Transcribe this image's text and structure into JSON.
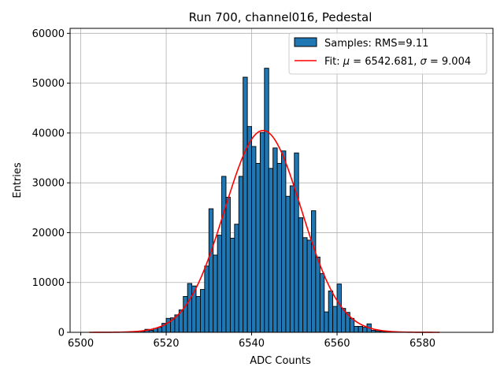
{
  "chart_data": {
    "type": "bar",
    "title": "Run 700, channel016, Pedestal",
    "xlabel": "ADC Counts",
    "ylabel": "Entries",
    "xlim": [
      6497.5,
      6596.5
    ],
    "ylim": [
      0,
      61000
    ],
    "xticks": [
      6500,
      6520,
      6540,
      6560,
      6580
    ],
    "yticks": [
      0,
      10000,
      20000,
      30000,
      40000,
      50000,
      60000
    ],
    "grid": true,
    "legend_placement": "top-right",
    "colors": {
      "bars": "#1f77b4",
      "bar_edge": "#000000",
      "fit": "#ff0000",
      "grid": "#b0b0b0"
    },
    "bin_width": 1,
    "histogram": {
      "name": "Samples: RMS=9.11",
      "x": [
        6514,
        6515,
        6516,
        6517,
        6518,
        6519,
        6520,
        6521,
        6522,
        6523,
        6524,
        6525,
        6526,
        6527,
        6528,
        6529,
        6530,
        6531,
        6532,
        6533,
        6534,
        6535,
        6536,
        6537,
        6538,
        6539,
        6540,
        6541,
        6542,
        6543,
        6544,
        6545,
        6546,
        6547,
        6548,
        6549,
        6550,
        6551,
        6552,
        6553,
        6554,
        6555,
        6556,
        6557,
        6558,
        6559,
        6560,
        6561,
        6562,
        6563,
        6564,
        6565,
        6566,
        6567,
        6568,
        6569,
        6570,
        6571
      ],
      "values": [
        200,
        600,
        400,
        800,
        1000,
        1800,
        2800,
        2900,
        3500,
        4500,
        7200,
        9800,
        9300,
        7200,
        8600,
        13300,
        24800,
        15500,
        19500,
        31300,
        27100,
        18900,
        21700,
        31300,
        51200,
        41300,
        37300,
        33900,
        40100,
        53000,
        32900,
        37000,
        33900,
        36400,
        27300,
        29400,
        36000,
        23000,
        19000,
        18500,
        24400,
        15100,
        11800,
        4100,
        8300,
        5200,
        9700,
        4800,
        4000,
        2800,
        1200,
        1200,
        1000,
        1700,
        400,
        300,
        200,
        100
      ]
    },
    "fit": {
      "name_prefix": "Fit: ",
      "name_mu": "μ",
      "name_mu_value": " = 6542.681, ",
      "name_sigma": "σ",
      "name_sigma_value": " = 9.004",
      "mu": 6542.681,
      "sigma": 9.004,
      "amplitude": 40500,
      "x_range": [
        6502,
        6584
      ]
    }
  }
}
